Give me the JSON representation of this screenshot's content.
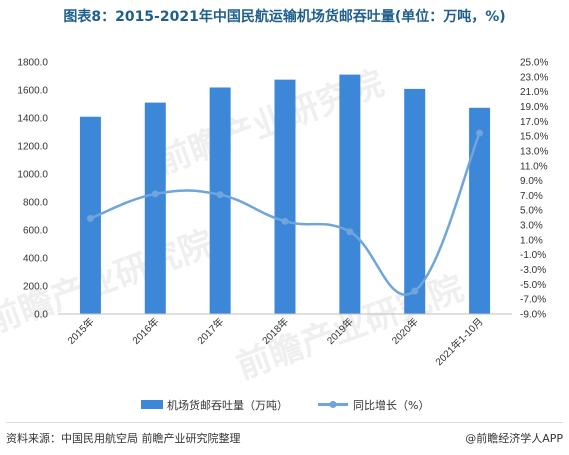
{
  "page": {
    "title": "图表8：2015-2021年中国民航运输机场货邮吞吐量(单位：万吨，%)",
    "source": "资料来源：中国民用航空局 前瞻产业研究院整理",
    "brand": "@前瞻经济学人APP",
    "watermark": "前瞻产业研究院"
  },
  "chart_data": {
    "type": "bar+line",
    "categories": [
      "2015年",
      "2016年",
      "2017年",
      "2018年",
      "2019年",
      "2020年",
      "2021年1-10月"
    ],
    "series": [
      {
        "name": "机场货邮吞吐量（万吨）",
        "type": "bar",
        "axis": "left",
        "color": "#3c87d8",
        "values": [
          1409,
          1510,
          1618,
          1674,
          1710,
          1608,
          1473
        ]
      },
      {
        "name": "同比增长（%）",
        "type": "line",
        "axis": "right",
        "color": "#6fa5da",
        "values": [
          3.9,
          7.2,
          7.1,
          3.5,
          2.1,
          -5.9,
          15.4
        ]
      }
    ],
    "y_left": {
      "min": 0,
      "max": 1800,
      "step": 200,
      "ticks": [
        "0.0",
        "200.0",
        "400.0",
        "600.0",
        "800.0",
        "1000.0",
        "1200.0",
        "1400.0",
        "1600.0",
        "1800.0"
      ]
    },
    "y_right": {
      "min": -9,
      "max": 25,
      "step": 2,
      "ticks": [
        "-9.0%",
        "-7.0%",
        "-5.0%",
        "-3.0%",
        "-1.0%",
        "1.0%",
        "3.0%",
        "5.0%",
        "7.0%",
        "9.0%",
        "11.0%",
        "13.0%",
        "15.0%",
        "17.0%",
        "19.0%",
        "21.0%",
        "23.0%",
        "25.0%"
      ]
    },
    "grid": false,
    "legend_position": "bottom"
  }
}
